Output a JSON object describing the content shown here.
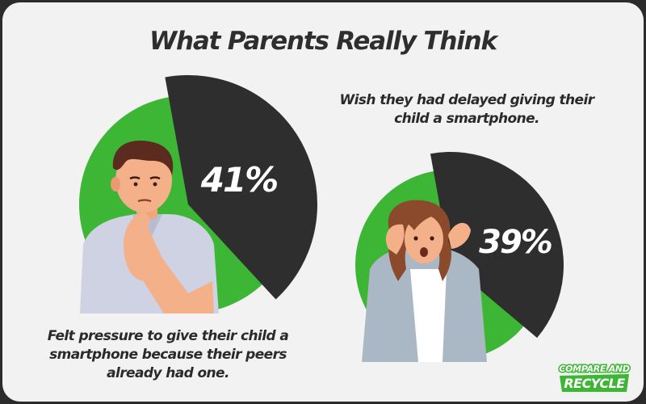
{
  "title": "What Parents Really Think",
  "chart_data": [
    {
      "type": "pie",
      "values": [
        41,
        59
      ],
      "labels": [
        "41%",
        ""
      ],
      "colors": [
        "#2e2e2e",
        "#3db535"
      ],
      "caption": "Felt pressure to give their child a smartphone because their peers already had one."
    },
    {
      "type": "pie",
      "values": [
        39,
        61
      ],
      "labels": [
        "39%",
        ""
      ],
      "colors": [
        "#2e2e2e",
        "#3db535"
      ],
      "caption": "Wish they had delayed giving their child a smartphone."
    }
  ],
  "logo": {
    "line1": "COMPARE AND",
    "line2": "RECYCLE",
    "color": "#3db535"
  }
}
